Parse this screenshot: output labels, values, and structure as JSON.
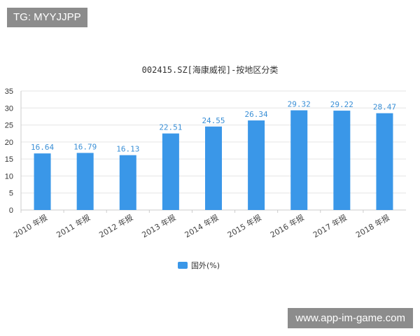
{
  "watermark_top": "TG: MYYJJPP",
  "watermark_bottom": "www.app-im-game.com",
  "colors": {
    "bar": "#3a97e8",
    "grid": "#e5e5e5",
    "axis": "#cccccc"
  },
  "chart_data": {
    "type": "bar",
    "title": "002415.SZ[海康威视]-按地区分类",
    "categories": [
      "2010 年报",
      "2011 年报",
      "2012 年报",
      "2013 年报",
      "2014 年报",
      "2015 年报",
      "2016 年报",
      "2017 年报",
      "2018 年报"
    ],
    "series": [
      {
        "name": "国外(%)",
        "values": [
          16.64,
          16.79,
          16.13,
          22.51,
          24.55,
          26.34,
          29.32,
          29.22,
          28.47
        ]
      }
    ],
    "ylim": [
      0,
      35
    ],
    "yticks": [
      0,
      5,
      10,
      15,
      20,
      25,
      30,
      35
    ],
    "grid": true,
    "legend": "bottom-center"
  }
}
